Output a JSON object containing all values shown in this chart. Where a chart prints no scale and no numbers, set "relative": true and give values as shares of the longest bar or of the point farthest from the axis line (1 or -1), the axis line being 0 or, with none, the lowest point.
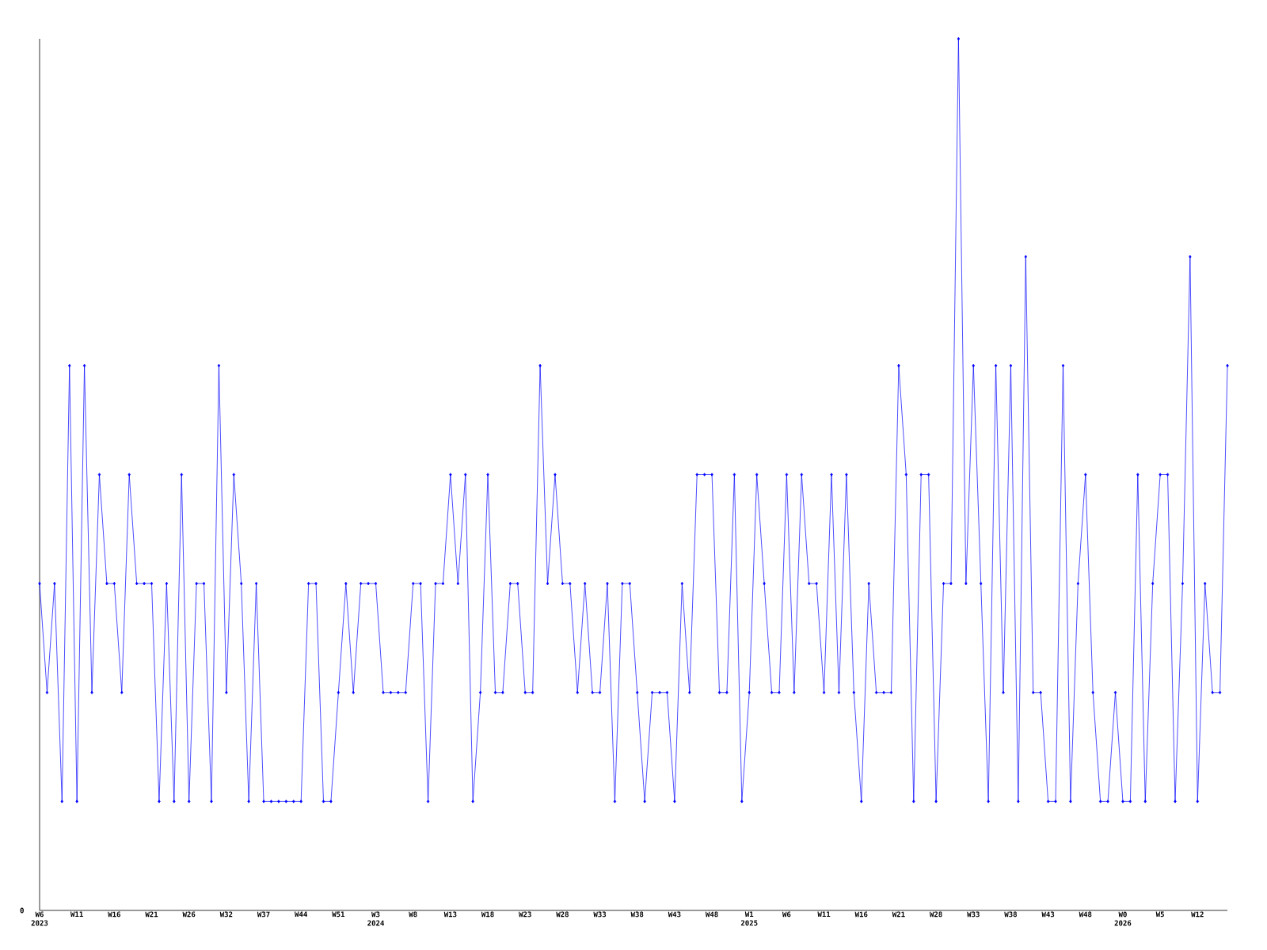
{
  "chart_data": {
    "type": "line",
    "relative": true,
    "color": "#0000ff",
    "marker": "diamond",
    "line_style": "solid",
    "categories": [
      "W6 2023",
      null,
      null,
      null,
      null,
      "W11",
      null,
      null,
      null,
      null,
      "W16",
      null,
      null,
      null,
      null,
      "W21",
      null,
      null,
      null,
      null,
      "W26",
      null,
      null,
      null,
      null,
      "W32",
      null,
      null,
      null,
      null,
      "W37",
      null,
      null,
      null,
      null,
      "W44",
      null,
      null,
      null,
      null,
      "W51",
      null,
      null,
      null,
      null,
      "W3 2024",
      null,
      null,
      null,
      null,
      "W8",
      null,
      null,
      null,
      null,
      "W13",
      null,
      null,
      null,
      null,
      "W18",
      null,
      null,
      null,
      null,
      "W23",
      null,
      null,
      null,
      null,
      "W28",
      null,
      null,
      null,
      null,
      "W33",
      null,
      null,
      null,
      null,
      "W38",
      null,
      null,
      null,
      null,
      "W43",
      null,
      null,
      null,
      null,
      "W48",
      null,
      null,
      null,
      null,
      "W1 2025",
      null,
      null,
      null,
      null,
      "W6",
      null,
      null,
      null,
      null,
      "W11",
      null,
      null,
      null,
      null,
      "W16",
      null,
      null,
      null,
      null,
      "W21",
      null,
      null,
      null,
      null,
      "W28",
      null,
      null,
      null,
      null,
      "W33",
      null,
      null,
      null,
      null,
      "W38",
      null,
      null,
      null,
      null,
      "W43",
      null,
      null,
      null,
      null,
      "W48",
      null,
      null,
      null,
      null,
      "W0 2026",
      null,
      null,
      null,
      null,
      "W5",
      null,
      null,
      null,
      null,
      "W12",
      null,
      null,
      null,
      null
    ],
    "values": [
      0.375,
      0.25,
      0.375,
      0.125,
      0.625,
      0.125,
      0.625,
      0.25,
      0.5,
      0.375,
      0.375,
      0.25,
      0.5,
      0.375,
      0.375,
      0.375,
      0.125,
      0.375,
      0.125,
      0.5,
      0.125,
      0.375,
      0.375,
      0.125,
      0.625,
      0.25,
      0.5,
      0.375,
      0.125,
      0.375,
      0.125,
      0.125,
      0.125,
      0.125,
      0.125,
      0.125,
      0.375,
      0.375,
      0.125,
      0.125,
      0.25,
      0.375,
      0.25,
      0.375,
      0.375,
      0.375,
      0.25,
      0.25,
      0.25,
      0.25,
      0.375,
      0.375,
      0.125,
      0.375,
      0.375,
      0.5,
      0.375,
      0.5,
      0.125,
      0.25,
      0.5,
      0.25,
      0.25,
      0.375,
      0.375,
      0.25,
      0.25,
      0.625,
      0.375,
      0.5,
      0.375,
      0.375,
      0.25,
      0.375,
      0.25,
      0.25,
      0.375,
      0.125,
      0.375,
      0.375,
      0.25,
      0.125,
      0.25,
      0.25,
      0.25,
      0.125,
      0.375,
      0.25,
      0.5,
      0.5,
      0.5,
      0.25,
      0.25,
      0.5,
      0.125,
      0.25,
      0.5,
      0.375,
      0.25,
      0.25,
      0.5,
      0.25,
      0.5,
      0.375,
      0.375,
      0.25,
      0.5,
      0.25,
      0.5,
      0.25,
      0.125,
      0.375,
      0.25,
      0.25,
      0.25,
      0.625,
      0.5,
      0.125,
      0.5,
      0.5,
      0.125,
      0.375,
      0.375,
      1,
      0.375,
      0.625,
      0.375,
      0.125,
      0.625,
      0.25,
      0.625,
      0.125,
      0.75,
      0.25,
      0.25,
      0.125,
      0.125,
      0.625,
      0.125,
      0.375,
      0.5,
      0.25,
      0.125,
      0.125,
      0.25,
      0.125,
      0.125,
      0.5,
      0.125,
      0.375,
      0.5,
      0.5,
      0.125,
      0.375,
      0.75,
      0.125,
      0.375,
      0.25,
      0.25,
      0.625
    ],
    "annotations": [
      "0"
    ]
  }
}
